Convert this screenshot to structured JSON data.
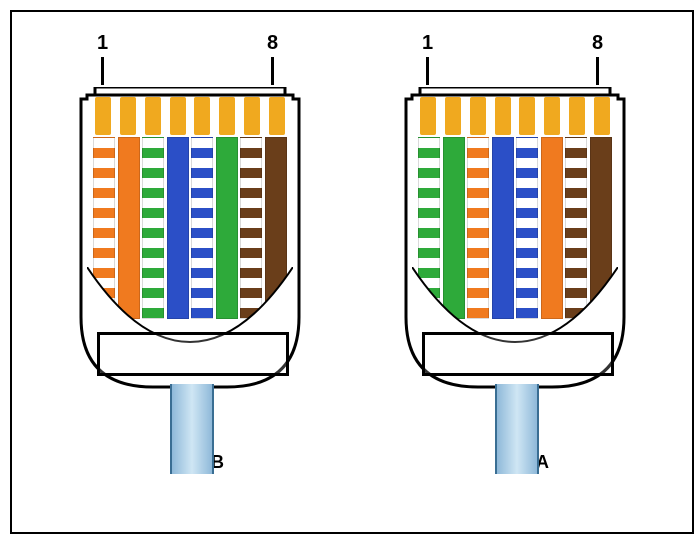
{
  "diagram": {
    "type": "infographic",
    "background_color": "#ffffff",
    "frame_border_color": "#000000",
    "pin_label_start": "1",
    "pin_label_end": "8",
    "pin_label_fontsize": 20,
    "caption_fontsize": 18,
    "contact_color": "#f0a91f",
    "plug_outline_color": "#000000",
    "cable_jacket_color": "#a8cde6",
    "cable_edge_color": "#3a6e93",
    "stripe_white": "#ffffff",
    "connectors": [
      {
        "label": "T568B",
        "wires": [
          {
            "striped": true,
            "color": "#f07a1f"
          },
          {
            "striped": false,
            "color": "#f07a1f"
          },
          {
            "striped": true,
            "color": "#2eaa3a"
          },
          {
            "striped": false,
            "color": "#2b4fc7"
          },
          {
            "striped": true,
            "color": "#2b4fc7"
          },
          {
            "striped": false,
            "color": "#2eaa3a"
          },
          {
            "striped": true,
            "color": "#6a3e1a"
          },
          {
            "striped": false,
            "color": "#6a3e1a"
          }
        ]
      },
      {
        "label": "T568A",
        "wires": [
          {
            "striped": true,
            "color": "#2eaa3a"
          },
          {
            "striped": false,
            "color": "#2eaa3a"
          },
          {
            "striped": true,
            "color": "#f07a1f"
          },
          {
            "striped": false,
            "color": "#2b4fc7"
          },
          {
            "striped": true,
            "color": "#2b4fc7"
          },
          {
            "striped": false,
            "color": "#f07a1f"
          },
          {
            "striped": true,
            "color": "#6a3e1a"
          },
          {
            "striped": false,
            "color": "#6a3e1a"
          }
        ]
      }
    ]
  }
}
